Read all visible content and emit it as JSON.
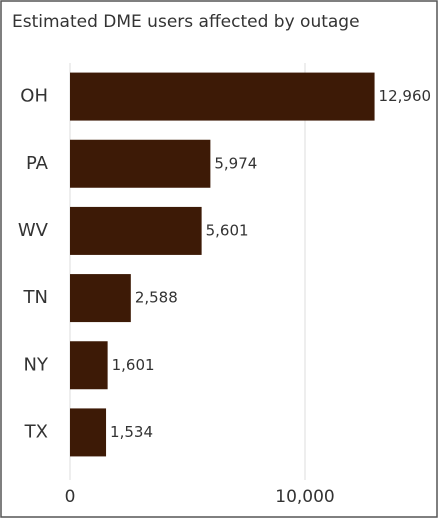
{
  "chart_data": {
    "type": "bar",
    "orientation": "horizontal",
    "title": "Estimated DME users affected by outage",
    "categories": [
      "OH",
      "PA",
      "WV",
      "TN",
      "NY",
      "TX"
    ],
    "values": [
      12960,
      5974,
      5601,
      2588,
      1601,
      1534
    ],
    "value_labels": [
      "12,960",
      "5,974",
      "5,601",
      "2,588",
      "1,601",
      "1,534"
    ],
    "color": "#3d1a06",
    "xlim": [
      0,
      15000
    ],
    "xticks": [
      0,
      {
        "value": 10000,
        "label": "10,000"
      }
    ],
    "grid": true
  }
}
